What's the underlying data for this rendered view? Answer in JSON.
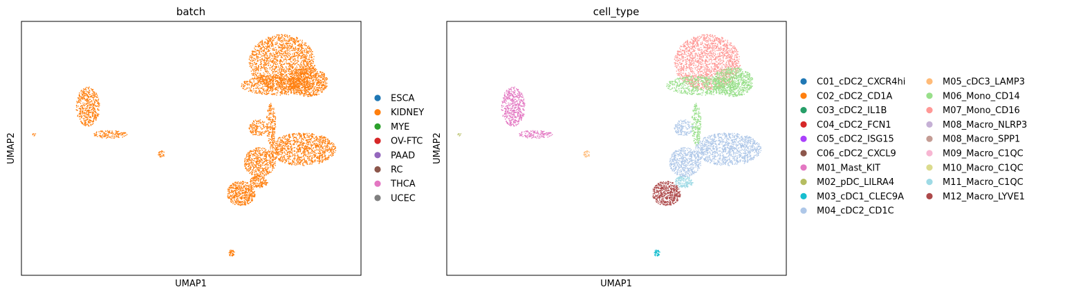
{
  "chart_data": [
    {
      "type": "scatter",
      "title": "batch",
      "xlabel": "UMAP1",
      "ylabel": "UMAP2",
      "grid": false,
      "legend_placement": "right",
      "legend": [
        {
          "label": "ESCA",
          "color": "#1f77b4"
        },
        {
          "label": "KIDNEY",
          "color": "#ff7f0e"
        },
        {
          "label": "MYE",
          "color": "#2ca02c"
        },
        {
          "label": "OV-FTC",
          "color": "#d62728"
        },
        {
          "label": "PAAD",
          "color": "#9467bd"
        },
        {
          "label": "RC",
          "color": "#8c564b"
        },
        {
          "label": "THCA",
          "color": "#e377c2"
        },
        {
          "label": "UCEC",
          "color": "#7f7f7f"
        }
      ],
      "clusters": [
        {
          "series": "KIDNEY",
          "x": 9.0,
          "y": 12.0,
          "rx": 2.1,
          "ry": 1.7,
          "n": 1700
        },
        {
          "series": "KIDNEY",
          "x": 10.6,
          "y": 10.8,
          "rx": 1.3,
          "ry": 0.9,
          "n": 700
        },
        {
          "series": "KIDNEY",
          "x": 8.7,
          "y": 10.6,
          "rx": 2.3,
          "ry": 0.6,
          "n": 600
        },
        {
          "series": "KIDNEY",
          "x": 10.3,
          "y": 6.7,
          "rx": 2.1,
          "ry": 1.0,
          "n": 1100
        },
        {
          "series": "KIDNEY",
          "x": 7.6,
          "y": 5.9,
          "rx": 1.0,
          "ry": 0.9,
          "n": 500
        },
        {
          "series": "KIDNEY",
          "x": 6.4,
          "y": 4.0,
          "rx": 0.9,
          "ry": 0.75,
          "n": 500
        },
        {
          "series": "KIDNEY",
          "x": 7.5,
          "y": 4.7,
          "rx": 0.6,
          "ry": 0.35,
          "n": 150
        },
        {
          "series": "KIDNEY",
          "x": 7.5,
          "y": 8.0,
          "rx": 0.6,
          "ry": 0.5,
          "n": 140
        },
        {
          "series": "KIDNEY",
          "x": 8.3,
          "y": 8.2,
          "rx": 0.3,
          "ry": 1.3,
          "n": 200
        },
        {
          "series": "KIDNEY",
          "x": -3.3,
          "y": 9.3,
          "rx": 0.75,
          "ry": 1.2,
          "n": 500
        },
        {
          "series": "KIDNEY",
          "x": -1.9,
          "y": 7.6,
          "rx": 1.1,
          "ry": 0.25,
          "n": 140
        },
        {
          "series": "KIDNEY",
          "x": 1.4,
          "y": 6.4,
          "rx": 0.25,
          "ry": 0.2,
          "n": 30
        },
        {
          "series": "KIDNEY",
          "x": -6.7,
          "y": 7.6,
          "rx": 0.1,
          "ry": 0.1,
          "n": 6
        },
        {
          "series": "KIDNEY",
          "x": 5.8,
          "y": 0.35,
          "rx": 0.2,
          "ry": 0.2,
          "n": 40
        }
      ]
    },
    {
      "type": "scatter",
      "title": "cell_type",
      "xlabel": "UMAP1",
      "ylabel": "UMAP2",
      "grid": false,
      "legend_placement": "right",
      "legend": [
        {
          "label": "C01_cDC2_CXCR4hi",
          "color": "#1f77b4"
        },
        {
          "label": "C02_cDC2_CD1A",
          "color": "#ff7f0e"
        },
        {
          "label": "C03_cDC2_IL1B",
          "color": "#279e68"
        },
        {
          "label": "C04_cDC2_FCN1",
          "color": "#d62728"
        },
        {
          "label": "C05_cDC2_ISG15",
          "color": "#aa40fc"
        },
        {
          "label": "C06_cDC2_CXCL9",
          "color": "#8c564b"
        },
        {
          "label": "M01_Mast_KIT",
          "color": "#e377c2"
        },
        {
          "label": "M02_pDC_LILRA4",
          "color": "#b5bd61"
        },
        {
          "label": "M03_cDC1_CLEC9A",
          "color": "#17becf"
        },
        {
          "label": "M04_cDC2_CD1C",
          "color": "#aec7e8"
        },
        {
          "label": "M05_cDC3_LAMP3",
          "color": "#ffbb78"
        },
        {
          "label": "M06_Mono_CD14",
          "color": "#98df8a"
        },
        {
          "label": "M07_Mono_CD16",
          "color": "#ff9896"
        },
        {
          "label": "M08_Macro_NLRP3",
          "color": "#c5b0d5"
        },
        {
          "label": "M08_Macro_SPP1",
          "color": "#c49c94"
        },
        {
          "label": "M09_Macro_C1QC",
          "color": "#f7b6d2"
        },
        {
          "label": "M10_Macro_C1QC",
          "color": "#dbdb8d"
        },
        {
          "label": "M11_Macro_C1QC",
          "color": "#9edae5"
        },
        {
          "label": "M12_Macro_LYVE1",
          "color": "#ad494a"
        }
      ],
      "clusters": [
        {
          "series": "M07_Mono_CD16",
          "x": 9.0,
          "y": 12.0,
          "rx": 2.1,
          "ry": 1.7,
          "n": 1700
        },
        {
          "series": "M06_Mono_CD14",
          "x": 10.6,
          "y": 10.8,
          "rx": 1.3,
          "ry": 0.9,
          "n": 700
        },
        {
          "series": "M06_Mono_CD14",
          "x": 8.7,
          "y": 10.6,
          "rx": 2.3,
          "ry": 0.6,
          "n": 600
        },
        {
          "series": "M04_cDC2_CD1C",
          "x": 10.3,
          "y": 6.7,
          "rx": 2.1,
          "ry": 1.0,
          "n": 1100
        },
        {
          "series": "M04_cDC2_CD1C",
          "x": 7.6,
          "y": 5.9,
          "rx": 1.0,
          "ry": 0.9,
          "n": 500
        },
        {
          "series": "M12_Macro_LYVE1",
          "x": 6.4,
          "y": 4.0,
          "rx": 0.9,
          "ry": 0.75,
          "n": 500
        },
        {
          "series": "M11_Macro_C1QC",
          "x": 7.5,
          "y": 4.7,
          "rx": 0.6,
          "ry": 0.35,
          "n": 150
        },
        {
          "series": "M04_cDC2_CD1C",
          "x": 7.5,
          "y": 8.0,
          "rx": 0.6,
          "ry": 0.5,
          "n": 140
        },
        {
          "series": "M06_Mono_CD14",
          "x": 8.3,
          "y": 8.2,
          "rx": 0.3,
          "ry": 1.3,
          "n": 200
        },
        {
          "series": "M01_Mast_KIT",
          "x": -3.3,
          "y": 9.3,
          "rx": 0.75,
          "ry": 1.2,
          "n": 500
        },
        {
          "series": "M01_Mast_KIT",
          "x": -1.9,
          "y": 7.6,
          "rx": 1.1,
          "ry": 0.25,
          "n": 140
        },
        {
          "series": "M05_cDC3_LAMP3",
          "x": 1.4,
          "y": 6.4,
          "rx": 0.25,
          "ry": 0.2,
          "n": 30
        },
        {
          "series": "M02_pDC_LILRA4",
          "x": -6.7,
          "y": 7.6,
          "rx": 0.1,
          "ry": 0.1,
          "n": 6
        },
        {
          "series": "M03_cDC1_CLEC9A",
          "x": 5.8,
          "y": 0.35,
          "rx": 0.2,
          "ry": 0.2,
          "n": 40
        }
      ]
    }
  ]
}
